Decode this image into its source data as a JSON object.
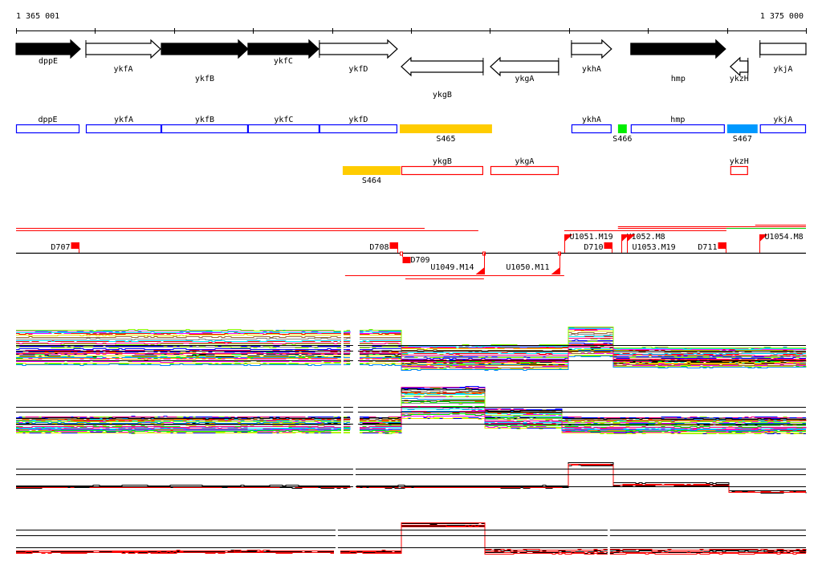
{
  "axis": {
    "start_label": "1 365 001",
    "end_label": "1 375 000",
    "start_bp": 1365001,
    "end_bp": 1375000,
    "tick_interval_bp": 1000
  },
  "genes": [
    {
      "name": "dppE",
      "start": 1365001,
      "end": 1365814,
      "strand": "+",
      "fill": "black"
    },
    {
      "name": "ykfA",
      "start": 1365885,
      "end": 1366830,
      "strand": "+",
      "fill": "white"
    },
    {
      "name": "ykfB",
      "start": 1366840,
      "end": 1367937,
      "strand": "+",
      "fill": "black"
    },
    {
      "name": "ykfC",
      "start": 1367937,
      "end": 1368831,
      "strand": "+",
      "fill": "black"
    },
    {
      "name": "ykfD",
      "start": 1368841,
      "end": 1369827,
      "strand": "+",
      "fill": "white"
    },
    {
      "name": "ykgB",
      "start": 1369878,
      "end": 1370914,
      "strand": "-",
      "fill": "white"
    },
    {
      "name": "ykgA",
      "start": 1371006,
      "end": 1371869,
      "strand": "-",
      "fill": "white"
    },
    {
      "name": "ykhA",
      "start": 1372032,
      "end": 1372539,
      "strand": "+",
      "fill": "white"
    },
    {
      "name": "hmp",
      "start": 1372783,
      "end": 1373982,
      "strand": "+",
      "fill": "black"
    },
    {
      "name": "ykzH",
      "start": 1374043,
      "end": 1374266,
      "strand": "-",
      "fill": "white"
    },
    {
      "name": "ykjA",
      "start": 1374418,
      "end": 1375000,
      "strand": "+",
      "fill": "white",
      "truncated": true
    }
  ],
  "segments_plus": [
    {
      "name": "dppE",
      "start": 1365001,
      "end": 1365804,
      "type": "gene",
      "color": "#0000ff"
    },
    {
      "name": "ykfA",
      "start": 1365885,
      "end": 1366840,
      "type": "gene",
      "color": "#0000ff"
    },
    {
      "name": "ykfB",
      "start": 1366840,
      "end": 1367937,
      "type": "gene",
      "color": "#0000ff"
    },
    {
      "name": "ykfC",
      "start": 1367937,
      "end": 1368841,
      "type": "gene",
      "color": "#0000ff"
    },
    {
      "name": "ykfD",
      "start": 1368841,
      "end": 1369827,
      "type": "gene",
      "color": "#0000ff"
    },
    {
      "name": "S465",
      "start": 1369858,
      "end": 1371026,
      "type": "segment",
      "color": "#ffcc00"
    },
    {
      "name": "ykhA",
      "start": 1372032,
      "end": 1372539,
      "type": "gene",
      "color": "#0000ff"
    },
    {
      "name": "S466",
      "start": 1372621,
      "end": 1372732,
      "type": "segment",
      "color": "#00ee00"
    },
    {
      "name": "hmp",
      "start": 1372783,
      "end": 1373972,
      "type": "gene",
      "color": "#0000ff"
    },
    {
      "name": "S467",
      "start": 1374003,
      "end": 1374388,
      "type": "segment",
      "color": "#0099ff"
    },
    {
      "name": "ykjA",
      "start": 1374418,
      "end": 1375000,
      "type": "gene",
      "color": "#0000ff"
    }
  ],
  "segments_minus": [
    {
      "name": "S464",
      "start": 1369136,
      "end": 1369868,
      "type": "segment",
      "color": "#ffcc00"
    },
    {
      "name": "ykgB",
      "start": 1369878,
      "end": 1370914,
      "type": "gene",
      "color": "#ff0000"
    },
    {
      "name": "ykgA",
      "start": 1371006,
      "end": 1371869,
      "type": "gene",
      "color": "#ff0000"
    },
    {
      "name": "ykzH",
      "start": 1374043,
      "end": 1374266,
      "type": "gene",
      "color": "#ff0000"
    }
  ],
  "terminators": [
    {
      "name": "D707",
      "pos": 1365794,
      "strand": "+",
      "kind": "box",
      "label_side": "left"
    },
    {
      "name": "D708",
      "pos": 1369827,
      "strand": "+",
      "kind": "box",
      "label_side": "left"
    },
    {
      "name": "D709",
      "pos": 1369878,
      "strand": "-",
      "kind": "box",
      "label_side": "right"
    },
    {
      "name": "U1049.M14",
      "pos": 1370924,
      "strand": "-",
      "kind": "tri",
      "label_side": "left"
    },
    {
      "name": "U1050.M11",
      "pos": 1371879,
      "strand": "-",
      "kind": "tri",
      "label_side": "left"
    },
    {
      "name": "U1051.M19",
      "pos": 1371940,
      "strand": "+",
      "kind": "flag",
      "label_side": "right"
    },
    {
      "name": "D710",
      "pos": 1372539,
      "strand": "+",
      "kind": "box",
      "label_side": "left"
    },
    {
      "name": "U1052.M8",
      "pos": 1372661,
      "strand": "+",
      "kind": "flag",
      "label_side": "right"
    },
    {
      "name": "U1053.M19",
      "pos": 1372732,
      "strand": "+",
      "kind": "flag",
      "label_side": "right"
    },
    {
      "name": "D711",
      "pos": 1373982,
      "strand": "+",
      "kind": "box",
      "label_side": "left"
    },
    {
      "name": "U1054.M8",
      "pos": 1374408,
      "strand": "+",
      "kind": "flag",
      "label_side": "right"
    }
  ],
  "transcripts_plus": [
    {
      "start": 1365001,
      "end": 1370173,
      "color": "#ff0000"
    },
    {
      "start": 1365001,
      "end": 1370853,
      "color": "#ff0000"
    },
    {
      "start": 1374357,
      "end": 1375000,
      "color": "#ff0000"
    },
    {
      "start": 1372620,
      "end": 1375000,
      "color": "#ff0000"
    },
    {
      "start": 1373993,
      "end": 1375000,
      "color": "#00cc00"
    },
    {
      "start": 1372620,
      "end": 1373993,
      "color": "#ff0000"
    },
    {
      "start": 1371940,
      "end": 1373993,
      "color": "#ff0000"
    }
  ],
  "transcripts_minus": [
    {
      "start": 1369166,
      "end": 1371940,
      "color": "#ff0000"
    },
    {
      "start": 1369929,
      "end": 1370924,
      "color": "#ff0000"
    }
  ],
  "expression_panels": [
    {
      "name": "expression-panel-1",
      "multicolor": true,
      "lines": 40,
      "ref_levels": [
        0.5,
        0.39,
        0.2
      ],
      "gaps": [
        [
          1369116,
          1369146
        ],
        [
          1369268,
          1369329
        ]
      ],
      "profile": [
        [
          1365001,
          1369847,
          0.47,
          0.35
        ],
        [
          1369847,
          1371991,
          0.27,
          0.25
        ],
        [
          1371991,
          1372540,
          0.58,
          0.3
        ],
        [
          1372540,
          1375000,
          0.27,
          0.2
        ]
      ]
    },
    {
      "name": "expression-panel-2",
      "multicolor": true,
      "lines": 40,
      "ref_levels": [
        0.59,
        0.5,
        0.29
      ],
      "gaps": [
        [
          1369116,
          1369146
        ],
        [
          1369268,
          1369329
        ]
      ],
      "profile": [
        [
          1365001,
          1369868,
          0.27,
          0.15
        ],
        [
          1369868,
          1370924,
          0.66,
          0.3
        ],
        [
          1370924,
          1371879,
          0.38,
          0.18
        ],
        [
          1371879,
          1375000,
          0.26,
          0.15
        ]
      ]
    },
    {
      "name": "expression-panel-3",
      "multicolor": false,
      "lines": 6,
      "ref_levels": [
        0.68,
        0.55,
        0.29
      ],
      "gaps": [
        [
          1369268,
          1369299
        ]
      ],
      "profile": [
        [
          1365001,
          1371991,
          0.28,
          0.06
        ],
        [
          1371991,
          1372540,
          0.78,
          0.1
        ],
        [
          1372540,
          1373993,
          0.33,
          0.08
        ],
        [
          1373993,
          1375000,
          0.17,
          0.05
        ]
      ]
    },
    {
      "name": "expression-panel-4",
      "multicolor": false,
      "lines": 6,
      "ref_levels": [
        0.59,
        0.47,
        0.21
      ],
      "gaps": [
        [
          1369045,
          1369075
        ],
        [
          1372489,
          1372519
        ]
      ],
      "profile": [
        [
          1365001,
          1369868,
          0.13,
          0.04
        ],
        [
          1369868,
          1370924,
          0.72,
          0.08
        ],
        [
          1370924,
          1375000,
          0.15,
          0.08
        ]
      ]
    }
  ],
  "palette": [
    "#ff0000",
    "#00ee00",
    "#0000ff",
    "#ff00ff",
    "#00e5ff",
    "#e5e500",
    "#ff8800",
    "#888888",
    "#996633",
    "#0088ff",
    "#88ff00",
    "#ff0088",
    "#000000",
    "#aa66cc"
  ]
}
